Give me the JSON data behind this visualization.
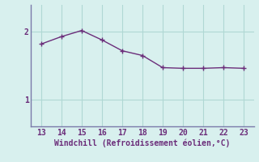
{
  "x": [
    13,
    14,
    15,
    16,
    17,
    18,
    19,
    20,
    21,
    22,
    23
  ],
  "y": [
    1.82,
    1.93,
    2.02,
    1.88,
    1.72,
    1.65,
    1.47,
    1.46,
    1.46,
    1.47,
    1.46
  ],
  "line_color": "#6b2d7a",
  "marker": "+",
  "marker_size": 4,
  "marker_color": "#6b2d7a",
  "bg_color": "#d8f0ee",
  "grid_color": "#b0d8d4",
  "xlabel": "Windchill (Refroidissement éolien,°C)",
  "xlabel_color": "#6b2d7a",
  "tick_color": "#6b2d7a",
  "spine_color": "#7a7aaa",
  "yticks": [
    1,
    2
  ],
  "xticks": [
    13,
    14,
    15,
    16,
    17,
    18,
    19,
    20,
    21,
    22,
    23
  ],
  "ylim": [
    0.6,
    2.4
  ],
  "xlim": [
    12.5,
    23.5
  ],
  "figsize": [
    3.2,
    2.0
  ],
  "dpi": 100
}
